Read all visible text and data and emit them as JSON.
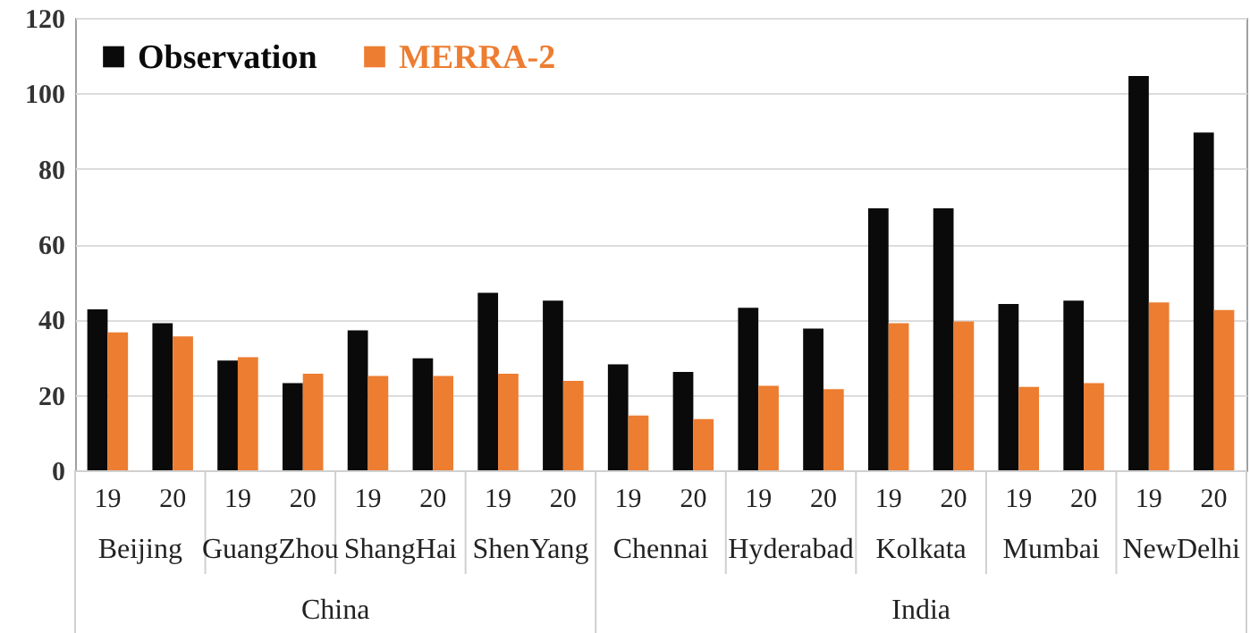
{
  "chart_data": {
    "type": "bar",
    "categories": [
      "19",
      "20",
      "19",
      "20",
      "19",
      "20",
      "19",
      "20",
      "19",
      "20",
      "19",
      "20",
      "19",
      "20",
      "19",
      "20",
      "19",
      "20"
    ],
    "series": [
      {
        "name": "Observation",
        "color": "#0a0a0a",
        "values": [
          42.7,
          39.0,
          29.1,
          23.1,
          37.1,
          29.7,
          47.1,
          45.0,
          28.1,
          26.1,
          43.1,
          37.6,
          69.5,
          69.5,
          44.1,
          45.0,
          104.6,
          89.6
        ]
      },
      {
        "name": "MERRA-2",
        "color": "#ed7d31",
        "values": [
          36.6,
          35.5,
          30.0,
          25.6,
          25.0,
          25.0,
          25.6,
          23.7,
          14.5,
          13.6,
          22.4,
          21.5,
          39.0,
          39.5,
          22.1,
          23.1,
          44.5,
          42.5
        ]
      }
    ],
    "annotations": [
      "Beijing",
      "GuangZhou",
      "ShangHai",
      "ShenYang",
      "Chennai",
      "Hyderabad",
      "Kolkata",
      "Mumbai",
      "NewDelhi",
      "China",
      "India"
    ],
    "ylim": [
      0,
      120
    ],
    "yticks": [
      0,
      20,
      40,
      60,
      80,
      100,
      120
    ],
    "grid": "y",
    "legend": "top left"
  }
}
